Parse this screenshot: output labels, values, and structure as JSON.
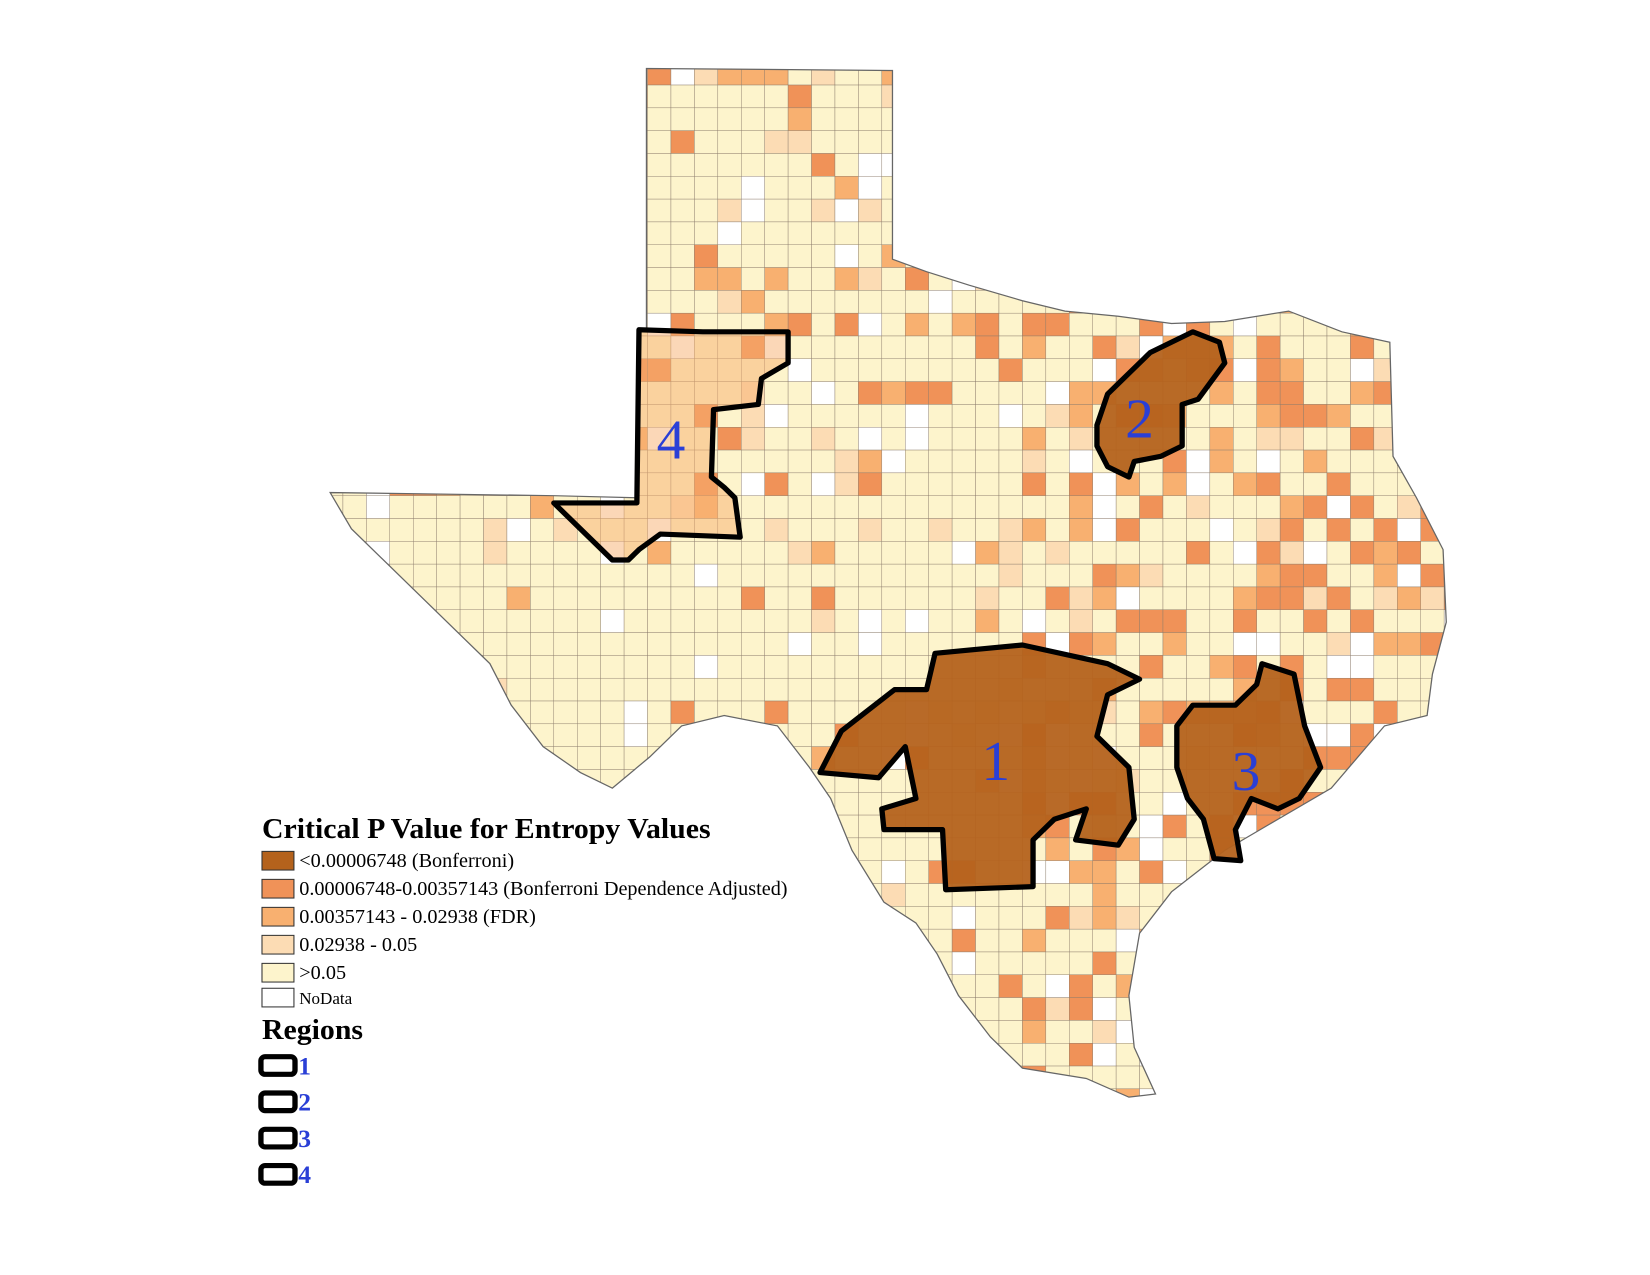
{
  "legend": {
    "title": "Critical P Value for Entropy Values",
    "items": [
      {
        "label": "<0.00006748 (Bonferroni)",
        "color": "#b4621c"
      },
      {
        "label": "0.00006748-0.00357143 (Bonferroni Dependence Adjusted)",
        "color": "#f09258"
      },
      {
        "label": "0.00357143 - 0.02938 (FDR)",
        "color": "#f8b070"
      },
      {
        "label": "0.02938 - 0.05",
        "color": "#fcdcb4"
      },
      {
        "label": ">0.05",
        "color": "#fdf4cc"
      },
      {
        "label": "NoData",
        "color": "#ffffff"
      }
    ]
  },
  "regions": {
    "title": "Regions",
    "items": [
      "1",
      "2",
      "3",
      "4"
    ]
  },
  "map": {
    "region_labels": [
      "1",
      "2",
      "3",
      "4"
    ]
  }
}
